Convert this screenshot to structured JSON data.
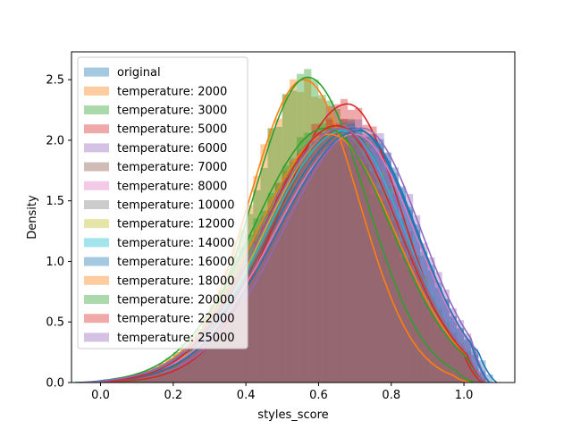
{
  "chart_data": {
    "type": "area",
    "subtype": "histogram_with_kde",
    "xlabel": "styles_score",
    "ylabel": "Density",
    "xlim": [
      -0.08,
      1.14
    ],
    "ylim": [
      0,
      2.73
    ],
    "x_ticks": [
      0.0,
      0.2,
      0.4,
      0.6,
      0.8,
      1.0
    ],
    "x_tick_labels": [
      "0.0",
      "0.2",
      "0.4",
      "0.6",
      "0.8",
      "1.0"
    ],
    "y_ticks": [
      0.0,
      0.5,
      1.0,
      1.5,
      2.0,
      2.5
    ],
    "y_tick_labels": [
      "0.0",
      "0.5",
      "1.0",
      "1.5",
      "2.0",
      "2.5"
    ],
    "grid": false,
    "legend_position": "upper-left",
    "series": [
      {
        "name": "original",
        "color": "#1f77b4",
        "peak_x": 0.7,
        "peak_y": 2.1,
        "x_min": -0.07,
        "x_max": 1.09,
        "sigma_left": 0.225,
        "sigma_right": 0.165
      },
      {
        "name": "temperature: 2000",
        "color": "#ff7f0e",
        "peak_x": 0.56,
        "peak_y": 2.5,
        "x_min": -0.05,
        "x_max": 1.02,
        "sigma_left": 0.15,
        "sigma_right": 0.15
      },
      {
        "name": "temperature: 3000",
        "color": "#2ca02c",
        "peak_x": 0.57,
        "peak_y": 2.52,
        "x_min": -0.05,
        "x_max": 1.03,
        "sigma_left": 0.15,
        "sigma_right": 0.16
      },
      {
        "name": "temperature: 5000",
        "color": "#d62728",
        "peak_x": 0.68,
        "peak_y": 2.3,
        "x_min": -0.05,
        "x_max": 1.05,
        "sigma_left": 0.19,
        "sigma_right": 0.15
      },
      {
        "name": "temperature: 6000",
        "color": "#9467bd",
        "peak_x": 0.72,
        "peak_y": 2.1,
        "x_min": -0.05,
        "x_max": 1.07,
        "sigma_left": 0.215,
        "sigma_right": 0.16
      },
      {
        "name": "temperature: 7000",
        "color": "#8c564b",
        "peak_x": 0.67,
        "peak_y": 2.1,
        "x_min": -0.05,
        "x_max": 1.06,
        "sigma_left": 0.2,
        "sigma_right": 0.16
      },
      {
        "name": "temperature: 8000",
        "color": "#e377c2",
        "peak_x": 0.7,
        "peak_y": 2.05,
        "x_min": -0.05,
        "x_max": 1.07,
        "sigma_left": 0.22,
        "sigma_right": 0.165
      },
      {
        "name": "temperature: 10000",
        "color": "#7f7f7f",
        "peak_x": 0.64,
        "peak_y": 2.1,
        "x_min": -0.05,
        "x_max": 1.06,
        "sigma_left": 0.2,
        "sigma_right": 0.18
      },
      {
        "name": "temperature: 12000",
        "color": "#bcbd22",
        "peak_x": 0.66,
        "peak_y": 2.1,
        "x_min": -0.05,
        "x_max": 1.06,
        "sigma_left": 0.205,
        "sigma_right": 0.17
      },
      {
        "name": "temperature: 14000",
        "color": "#17becf",
        "peak_x": 0.67,
        "peak_y": 2.08,
        "x_min": -0.05,
        "x_max": 1.06,
        "sigma_left": 0.21,
        "sigma_right": 0.165
      },
      {
        "name": "temperature: 16000",
        "color": "#1f77b4",
        "peak_x": 0.71,
        "peak_y": 2.08,
        "x_min": -0.05,
        "x_max": 1.07,
        "sigma_left": 0.22,
        "sigma_right": 0.16
      },
      {
        "name": "temperature: 18000",
        "color": "#ff7f0e",
        "peak_x": 0.63,
        "peak_y": 2.05,
        "x_min": -0.05,
        "x_max": 1.06,
        "sigma_left": 0.2,
        "sigma_right": 0.18
      },
      {
        "name": "temperature: 20000",
        "color": "#2ca02c",
        "peak_x": 0.62,
        "peak_y": 2.1,
        "x_min": -0.05,
        "x_max": 1.06,
        "sigma_left": 0.2,
        "sigma_right": 0.18
      },
      {
        "name": "temperature: 22000",
        "color": "#d62728",
        "peak_x": 0.65,
        "peak_y": 2.12,
        "x_min": -0.05,
        "x_max": 1.06,
        "sigma_left": 0.2,
        "sigma_right": 0.17
      },
      {
        "name": "temperature: 25000",
        "color": "#9467bd",
        "peak_x": 0.66,
        "peak_y": 2.1,
        "x_min": -0.05,
        "x_max": 1.06,
        "sigma_left": 0.21,
        "sigma_right": 0.17
      }
    ]
  }
}
